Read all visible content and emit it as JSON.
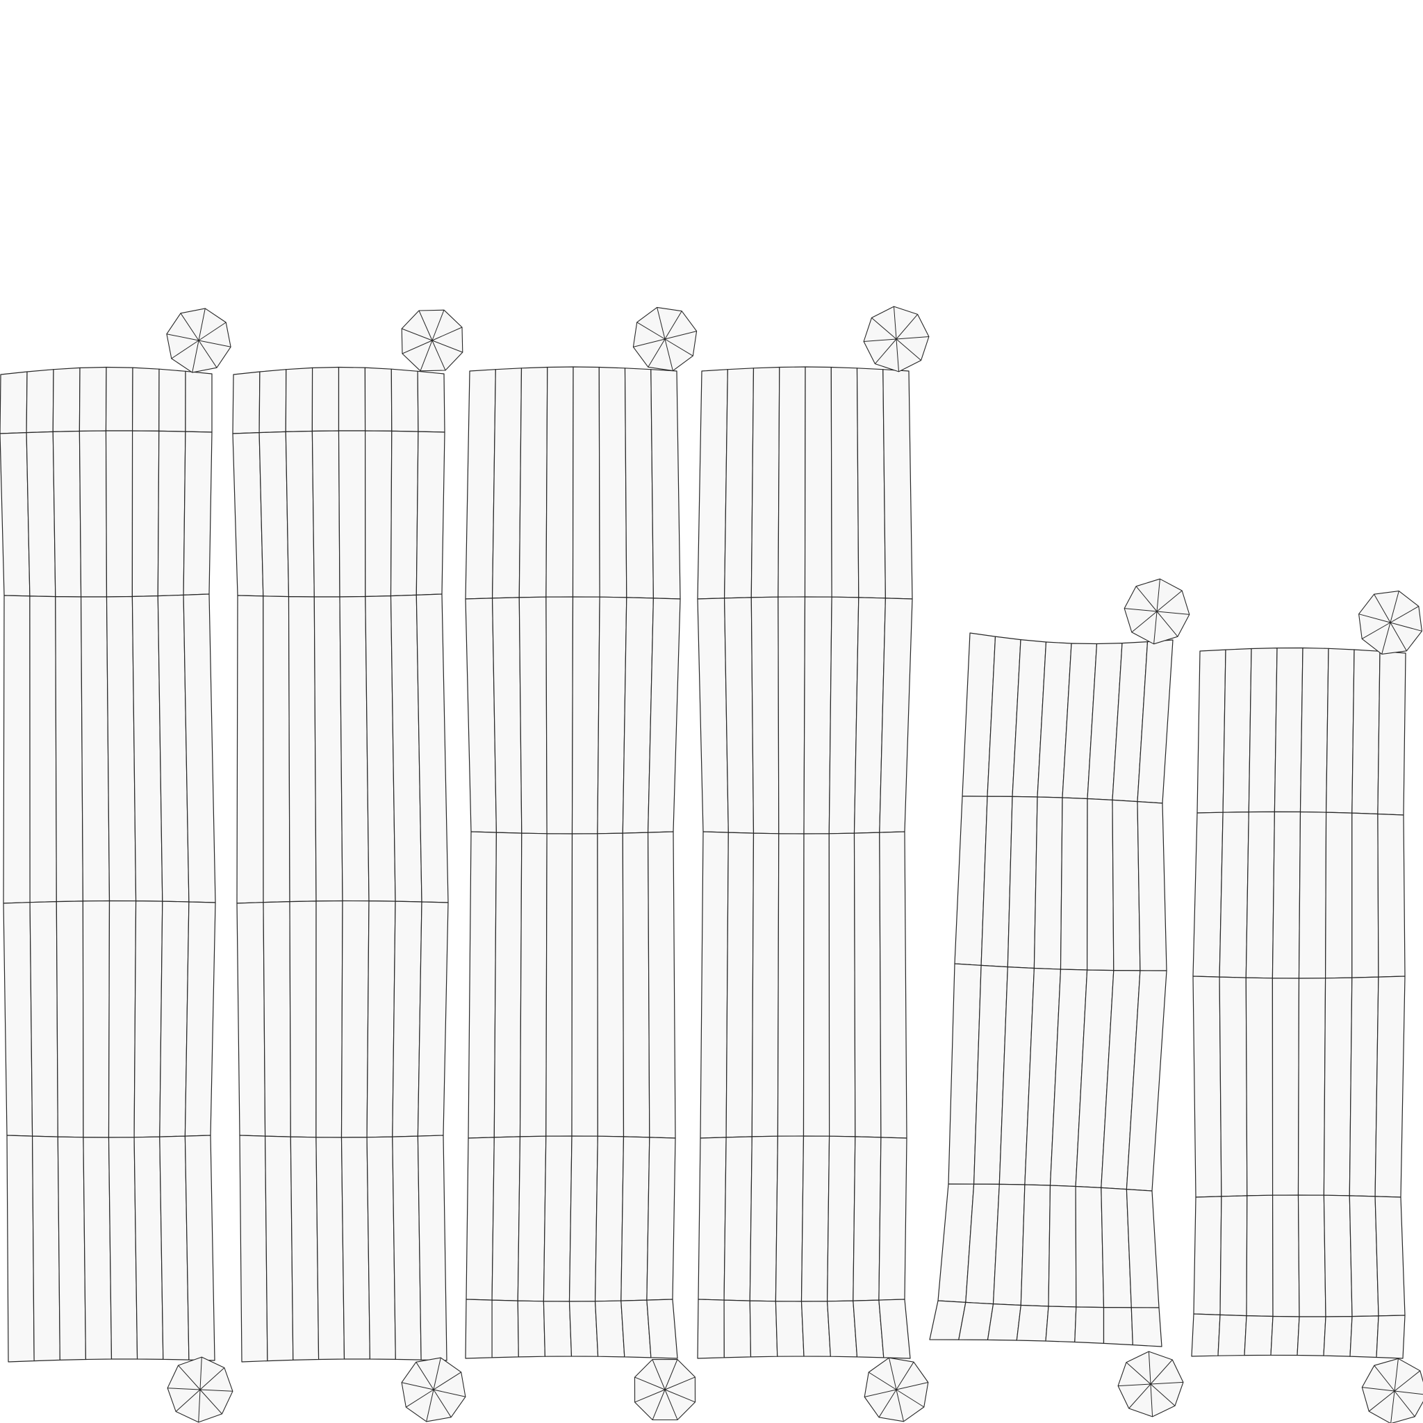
{
  "diagram": {
    "kind": "uv-layout-wireframe",
    "strip_count": 6,
    "columns_per_strip": 8,
    "rows_per_strip": 5,
    "cap_segments": 8,
    "colors": {
      "background": "#ffffff",
      "face_fill": "#f8f8f8",
      "wire": "#262626"
    }
  }
}
